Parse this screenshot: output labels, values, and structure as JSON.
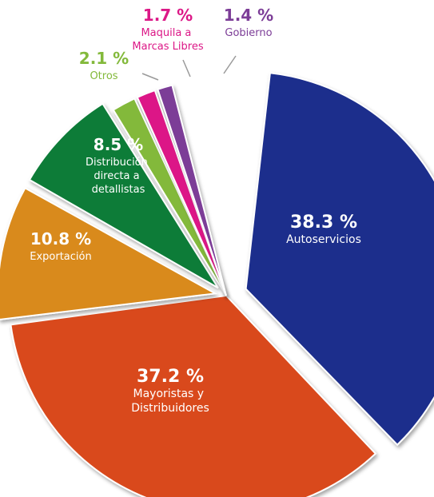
{
  "chart_data": {
    "type": "pie",
    "title": "",
    "slices": [
      {
        "label": "Autoservicios",
        "value": 38.3,
        "value_label": "38.3 %",
        "color": "#1e2e8c",
        "label_color": "#ffffff"
      },
      {
        "label": "Mayoristas y Distribuidores",
        "value": 37.2,
        "value_label": "37.2 %",
        "color": "#d9491d",
        "label_color": "#ffffff"
      },
      {
        "label": "Exportación",
        "value": 10.8,
        "value_label": "10.8 %",
        "color": "#d98a1c",
        "label_color": "#ffffff"
      },
      {
        "label": "Distribución directa a detallistas",
        "value": 8.5,
        "value_label": "8.5 %",
        "color": "#0b7b37",
        "label_color": "#ffffff"
      },
      {
        "label": "Otros",
        "value": 2.1,
        "value_label": "2.1 %",
        "color": "#83b93b",
        "label_color": "#83b93b"
      },
      {
        "label": "Maquila a Marcas Libres",
        "value": 1.7,
        "value_label": "1.7 %",
        "color": "#dc1887",
        "label_color": "#dc1887"
      },
      {
        "label": "Gobierno",
        "value": 1.4,
        "value_label": "1.4 %",
        "color": "#7c3d97",
        "label_color": "#7c3d97"
      }
    ]
  }
}
